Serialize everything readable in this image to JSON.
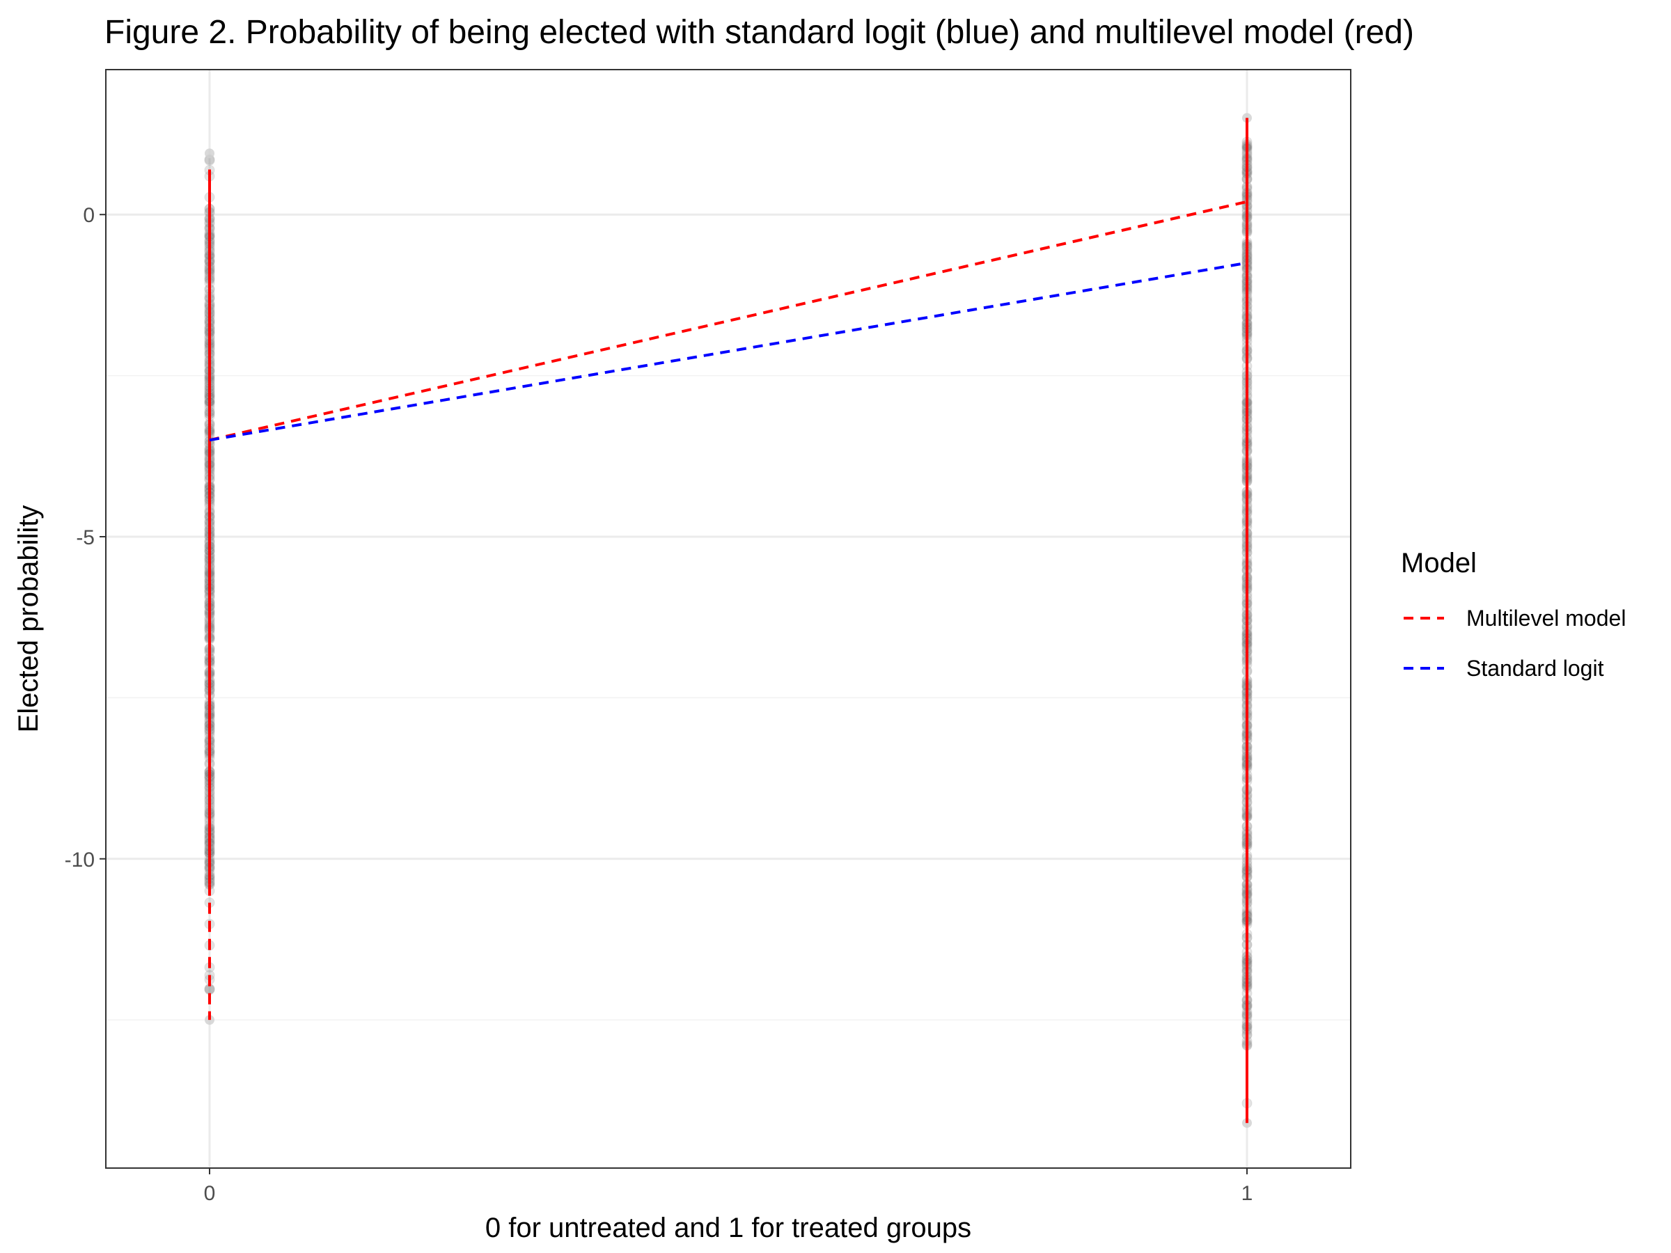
{
  "chart_data": {
    "type": "line",
    "title": "Figure 2. Probability of being elected with standard logit (blue) and multilevel model (red)",
    "xlabel": "0 for untreated and 1 for treated groups",
    "ylabel": "Elected probability",
    "x_ticks": [
      "0",
      "1"
    ],
    "y_ticks": [
      "0",
      "-5",
      "-10"
    ],
    "y_tick_values": [
      0,
      -5,
      -10
    ],
    "xlim": [
      -0.1,
      1.1
    ],
    "ylim": [
      -14.8,
      2.25
    ],
    "grid": true,
    "legend": {
      "title": "Model",
      "position": "right",
      "entries": [
        "Multilevel model",
        "Standard logit"
      ]
    },
    "series": [
      {
        "name": "Multilevel model",
        "color": "#ff0000",
        "linestyle": "dashed",
        "x": [
          0,
          1
        ],
        "y": [
          -3.5,
          0.2
        ]
      },
      {
        "name": "Standard logit",
        "color": "#0000ff",
        "linestyle": "dashed",
        "x": [
          0,
          1
        ],
        "y": [
          -3.5,
          -0.75
        ]
      }
    ],
    "observations": {
      "color": "#7f7f7f",
      "groups": [
        {
          "x": 0,
          "y_min": -12.5,
          "y_max": 0.95,
          "dense_min": -10.4,
          "dense_max": 0.1
        },
        {
          "x": 1,
          "y_min": -14.1,
          "y_max": 1.5,
          "dense_min": -12.9,
          "dense_max": 1.1
        }
      ]
    },
    "random_effect_ranges": [
      {
        "x": 0,
        "y_min": -12.5,
        "y_max": 0.7,
        "color": "#ff0000"
      },
      {
        "x": 1,
        "y_min": -14.1,
        "y_max": 1.5,
        "color": "#ff0000"
      }
    ]
  }
}
